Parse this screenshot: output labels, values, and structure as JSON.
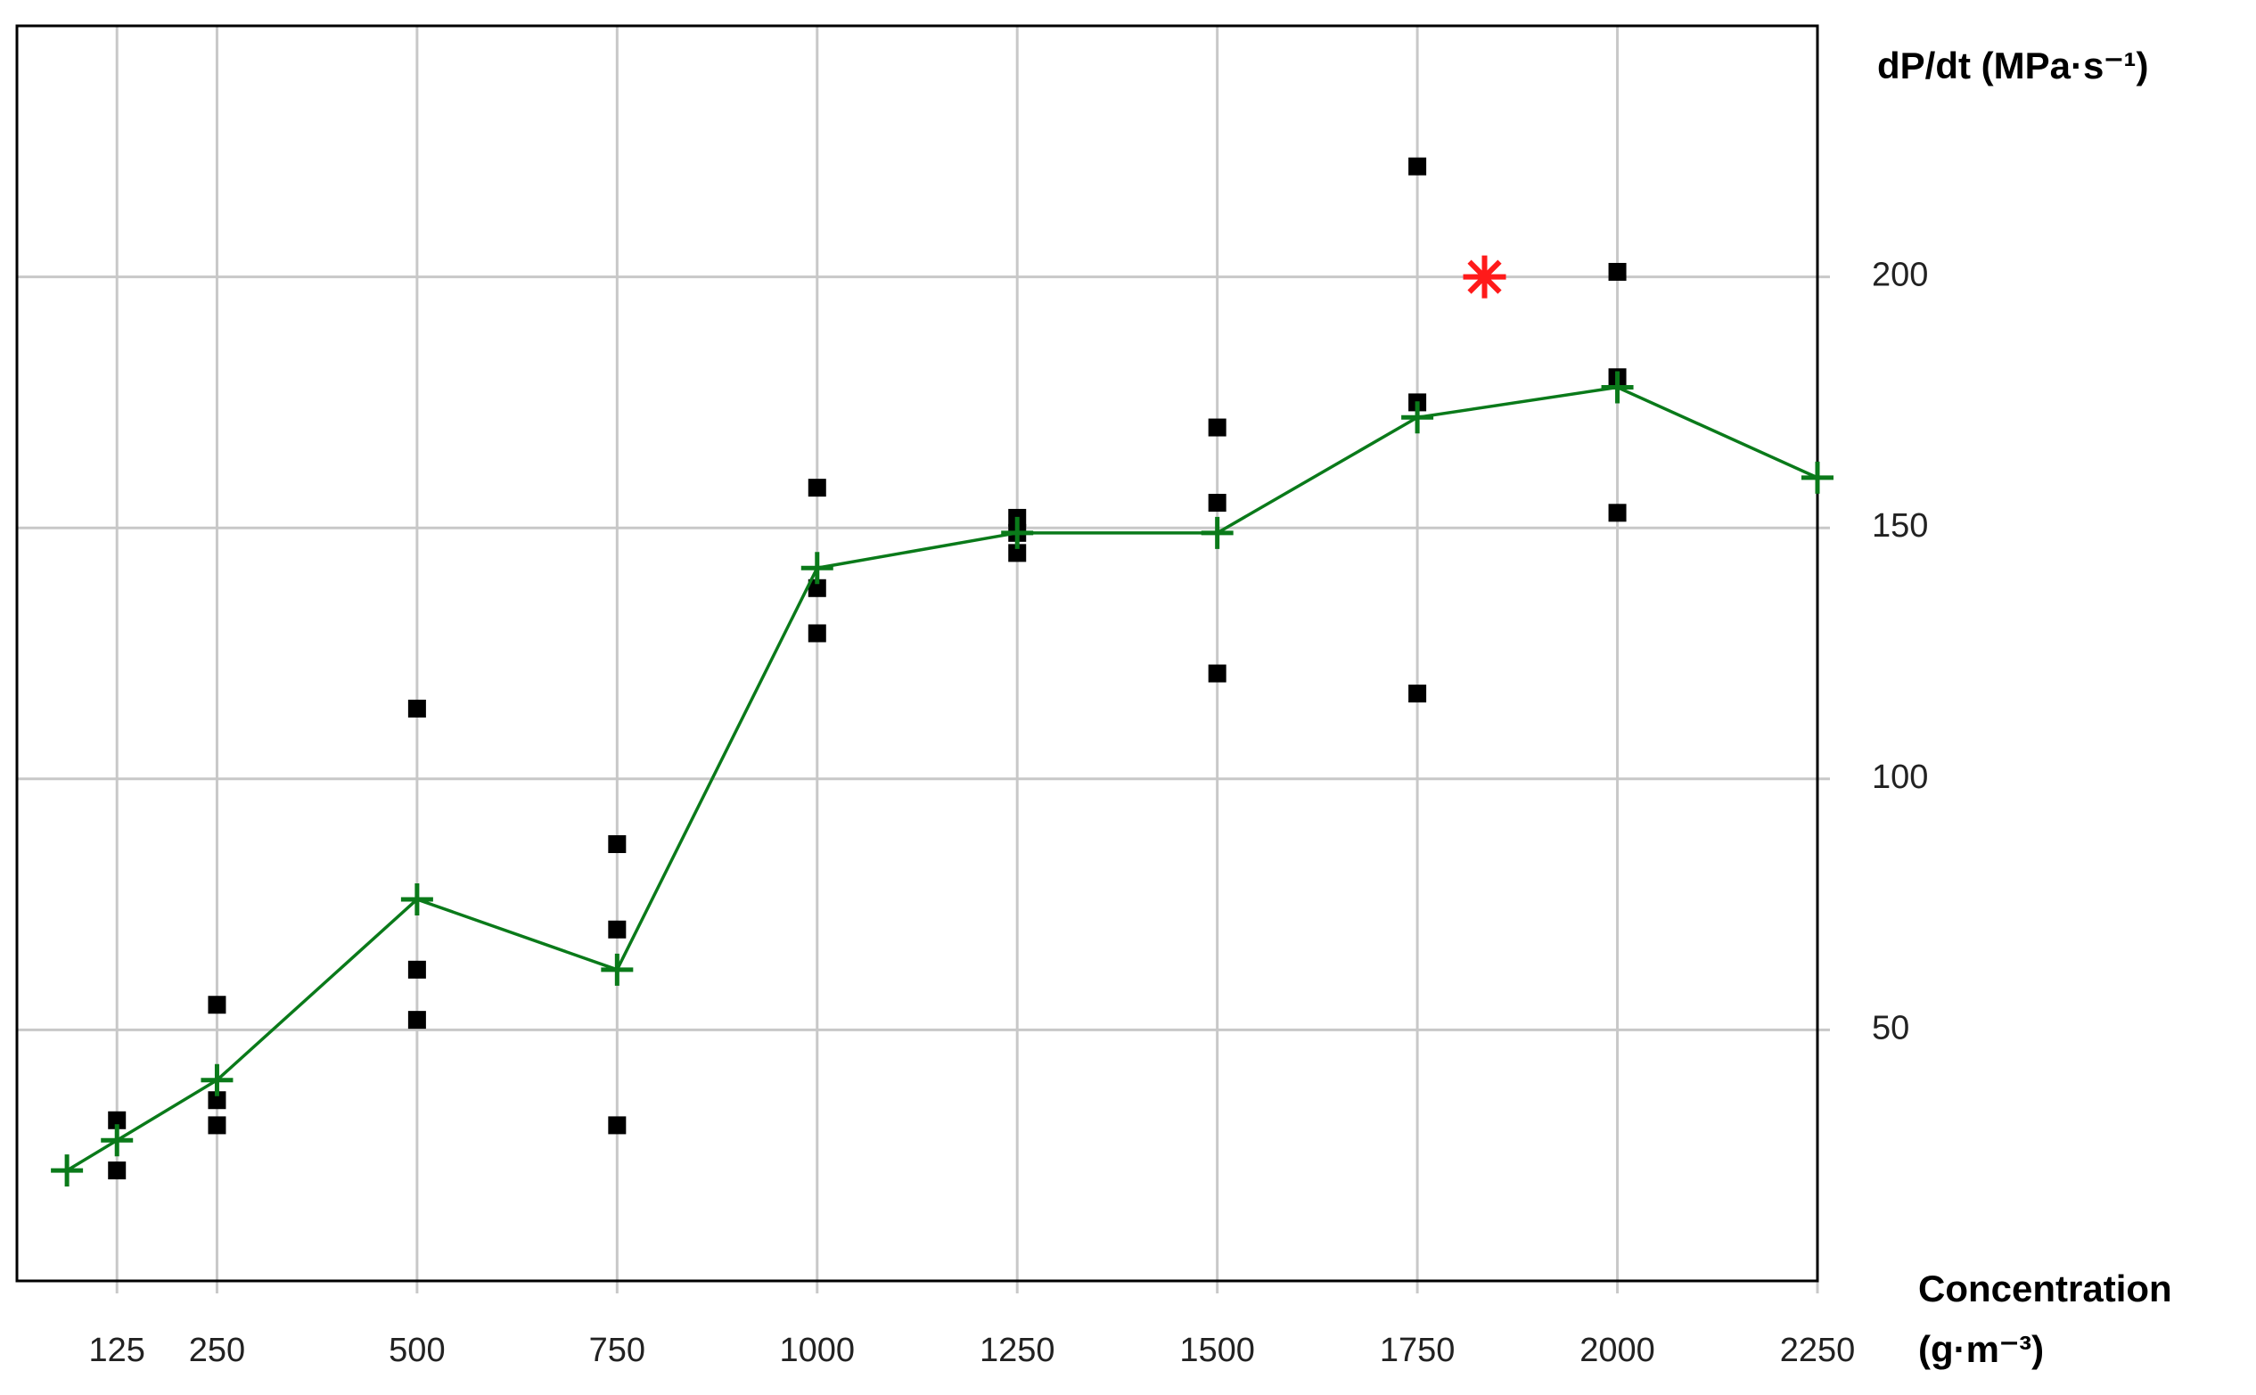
{
  "chart_data": {
    "type": "scatter",
    "ylabel": "dP/dt (MPa·s⁻¹)",
    "xlabel": [
      "Concentration",
      "(g·m⁻³)"
    ],
    "xlim": [
      0,
      2250
    ],
    "ylim": [
      0,
      250
    ],
    "xticks": [
      125,
      250,
      500,
      750,
      1000,
      1250,
      1500,
      1750,
      2000,
      2250
    ],
    "yticks": [
      50,
      100,
      150,
      200
    ],
    "grid": true,
    "series": [
      {
        "color": "#000000",
        "marker": "square",
        "line": false,
        "x": [
          125,
          125,
          250,
          250,
          250,
          500,
          500,
          500,
          750,
          750,
          750,
          1000,
          1000,
          1000,
          1250,
          1250,
          1250,
          1500,
          1500,
          1500,
          1750,
          1750,
          1750,
          2000,
          2000,
          2000
        ],
        "values": [
          32,
          22,
          55,
          36,
          31,
          114,
          62,
          52,
          87,
          70,
          31,
          158,
          138,
          129,
          152,
          149,
          145,
          170,
          155,
          121,
          222,
          175,
          117,
          201,
          180,
          153
        ]
      },
      {
        "color": "#0a7a1a",
        "marker": "plus",
        "line": true,
        "x": [
          62.5,
          125,
          250,
          500,
          750,
          1000,
          1250,
          1500,
          1750,
          2000,
          2250
        ],
        "values": [
          22,
          28,
          40,
          76,
          62,
          142,
          149,
          149,
          172,
          178,
          160
        ]
      },
      {
        "color": "#ff1a1a",
        "marker": "asterisk",
        "line": false,
        "x": [
          1834
        ],
        "values": [
          200
        ]
      }
    ]
  }
}
